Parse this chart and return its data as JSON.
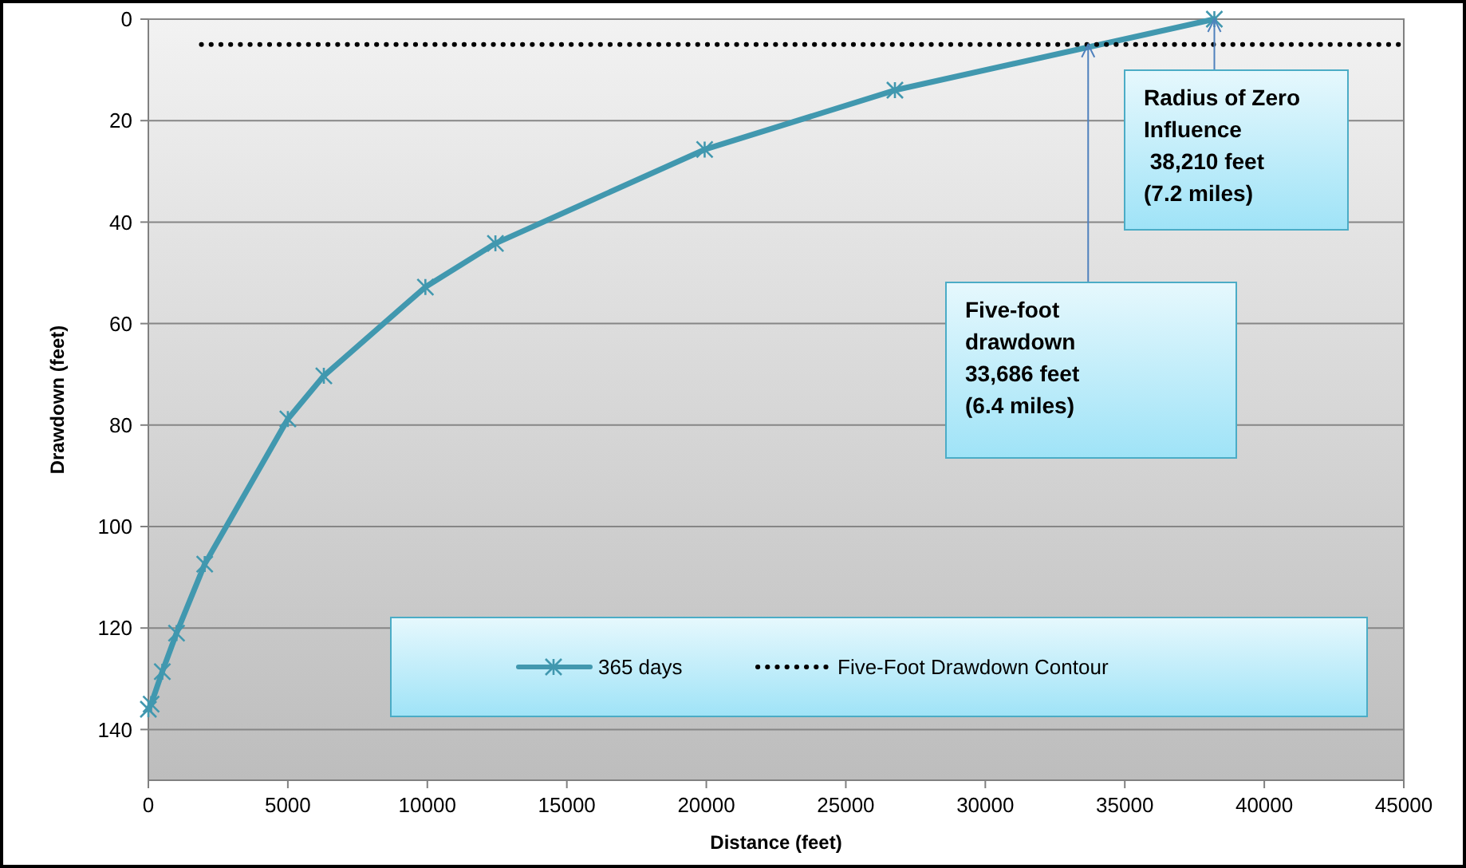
{
  "chart_data": {
    "type": "line",
    "xlabel": "Distance (feet)",
    "ylabel": "Drawdown (feet)",
    "xlim": [
      0,
      45000
    ],
    "xticks": [
      0,
      5000,
      10000,
      15000,
      20000,
      25000,
      30000,
      35000,
      40000,
      45000
    ],
    "ylim": [
      150,
      0
    ],
    "yticks": [
      0,
      20,
      40,
      60,
      80,
      100,
      120,
      140
    ],
    "grid": "y",
    "legend": "bottom",
    "series": [
      {
        "name": "365 days",
        "color": "#4198af",
        "marker": "cross",
        "line_style": "solid",
        "x": [
          0,
          100,
          500,
          1010,
          2020,
          5000,
          6290,
          9930,
          12440,
          19940,
          26760,
          38210
        ],
        "values": [
          136,
          135,
          128.6,
          121,
          107.4,
          78.8,
          70.3,
          52.8,
          44.2,
          25.7,
          14,
          0
        ]
      },
      {
        "name": "Five-Foot Drawdown Contour",
        "color": "#000000",
        "marker": "none",
        "line_style": "dotted",
        "x": [
          1900,
          45000
        ],
        "values": [
          5,
          5
        ]
      }
    ],
    "annotations": [
      {
        "text": "Radius of Zero Influence\n 38,210 feet\n(7.2 miles)",
        "x": 38210,
        "y": 0
      },
      {
        "text": "Five-foot\ndrawdown\n33,686 feet\n(6.4 miles)",
        "x": 33686,
        "y": 5
      }
    ]
  }
}
